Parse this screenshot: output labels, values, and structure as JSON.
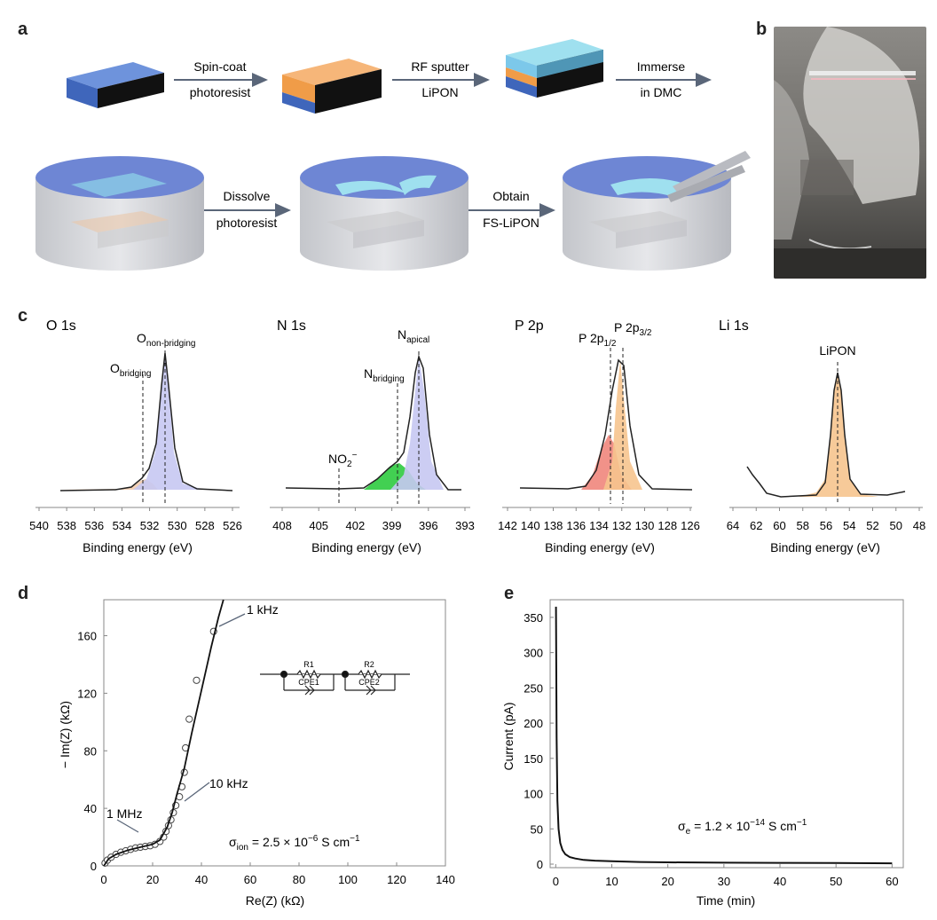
{
  "panel_labels": {
    "a": "a",
    "b": "b",
    "c": "c",
    "d": "d",
    "e": "e"
  },
  "steps": {
    "s1a": "Spin-coat",
    "s1b": "photoresist",
    "s2a": "RF sputter",
    "s2b": "LiPON",
    "s3a": "Immerse",
    "s3b": "in DMC",
    "s4a": "Dissolve",
    "s4b": "photoresist",
    "s5a": "Obtain",
    "s5b": "FS-LiPON"
  },
  "colors": {
    "substrate": "#4f77c9",
    "photoresist": "#f0a355",
    "lipon": "#7fd0e8",
    "vessel": "#d9dbe0",
    "liquid": "#6e86d4"
  },
  "xps": [
    {
      "title": "O 1s",
      "xlabel": "Binding energy (eV)",
      "ticks": [
        "540",
        "538",
        "536",
        "534",
        "532",
        "530",
        "528",
        "526"
      ],
      "peaks": [
        "O",
        "non-bridging",
        "O",
        "bridging"
      ]
    },
    {
      "title": "N 1s",
      "xlabel": "Binding energy (eV)",
      "ticks": [
        "408",
        "405",
        "402",
        "399",
        "396",
        "393"
      ],
      "peaks": [
        "N",
        "apical",
        "N",
        "bridging",
        "NO",
        "2",
        "−"
      ]
    },
    {
      "title": "P 2p",
      "xlabel": "Binding energy (eV)",
      "ticks": [
        "142",
        "140",
        "138",
        "136",
        "134",
        "132",
        "130",
        "128",
        "126"
      ],
      "peaks": [
        "P 2p",
        "1/2",
        "P 2p",
        "3/2"
      ]
    },
    {
      "title": "Li 1s",
      "xlabel": "Binding energy (eV)",
      "ticks": [
        "64",
        "62",
        "60",
        "58",
        "56",
        "54",
        "52",
        "50",
        "48"
      ],
      "peaks": [
        "LiPON"
      ]
    }
  ],
  "chart_data": [
    {
      "type": "scatter",
      "panel": "d",
      "xlabel": "Re(Z) (kΩ)",
      "ylabel": "− Im(Z) (kΩ)",
      "xlim": [
        0,
        140
      ],
      "ylim": [
        0,
        185
      ],
      "xticks": [
        "0",
        "20",
        "40",
        "60",
        "80",
        "100",
        "120",
        "140"
      ],
      "yticks": [
        "0",
        "40",
        "80",
        "120",
        "160"
      ],
      "points": [
        [
          0.5,
          2
        ],
        [
          1.5,
          4
        ],
        [
          3,
          6
        ],
        [
          5,
          8
        ],
        [
          7,
          9.5
        ],
        [
          9,
          10.5
        ],
        [
          11,
          11.5
        ],
        [
          13,
          12.5
        ],
        [
          15,
          13
        ],
        [
          17,
          13.5
        ],
        [
          19,
          14
        ],
        [
          21,
          15
        ],
        [
          23,
          17
        ],
        [
          24.5,
          20
        ],
        [
          25.5,
          24
        ],
        [
          26.5,
          28
        ],
        [
          27.5,
          32
        ],
        [
          28.5,
          37
        ],
        [
          29.5,
          42
        ],
        [
          31,
          48
        ],
        [
          32,
          55
        ],
        [
          33,
          65
        ],
        [
          33.5,
          82
        ],
        [
          35,
          102
        ],
        [
          38,
          129
        ],
        [
          45,
          163
        ]
      ],
      "fit": [
        [
          0,
          0
        ],
        [
          2,
          5
        ],
        [
          5,
          8
        ],
        [
          10,
          11
        ],
        [
          15,
          13
        ],
        [
          20,
          15
        ],
        [
          23,
          18
        ],
        [
          26,
          27
        ],
        [
          28,
          37
        ],
        [
          30,
          50
        ],
        [
          33,
          68
        ],
        [
          36,
          92
        ],
        [
          40,
          122
        ],
        [
          44,
          152
        ],
        [
          47,
          173
        ],
        [
          49,
          185
        ]
      ],
      "annotations": [
        "1 kHz",
        "10 kHz",
        "1 MHz"
      ],
      "sigma": {
        "sym": "σ",
        "sub": "ion",
        "text": " = 2.5 × 10",
        "exp": "−6",
        "unit": " S cm",
        "unit_exp": "−1"
      },
      "circuit": {
        "r1": "R1",
        "r2": "R2",
        "c1": "CPE1",
        "c2": "CPE2"
      }
    },
    {
      "type": "line",
      "panel": "e",
      "xlabel": "Time (min)",
      "ylabel": "Current (pA)",
      "xlim": [
        -1,
        62
      ],
      "ylim": [
        -5,
        375
      ],
      "xticks": [
        "0",
        "10",
        "20",
        "30",
        "40",
        "50",
        "60"
      ],
      "yticks": [
        "0",
        "50",
        "100",
        "150",
        "200",
        "250",
        "300",
        "350"
      ],
      "x": [
        0.05,
        0.15,
        0.3,
        0.5,
        0.8,
        1.2,
        1.7,
        2.5,
        3.5,
        5,
        7,
        10,
        15,
        20,
        30,
        40,
        50,
        60
      ],
      "y": [
        365,
        180,
        90,
        50,
        30,
        20,
        14,
        10,
        8,
        6,
        5,
        4,
        3,
        2.5,
        2,
        1.8,
        1.5,
        1.2
      ],
      "sigma": {
        "sym": "σ",
        "sub": "e",
        "text": " = 1.2 × 10",
        "exp": "−14",
        "unit": " S cm",
        "unit_exp": "−1"
      }
    }
  ]
}
